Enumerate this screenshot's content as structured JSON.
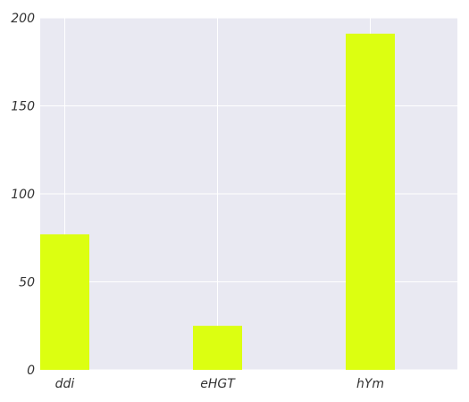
{
  "chart_data": {
    "type": "bar",
    "categories": [
      "ddi",
      "eHGT",
      "hYm"
    ],
    "values": [
      77,
      25,
      191
    ],
    "title": "",
    "xlabel": "",
    "ylabel": "",
    "ylim": [
      0,
      200
    ],
    "yticks": [
      0,
      50,
      100,
      150,
      200
    ],
    "grid": true,
    "legend": "none",
    "colors": {
      "bar": "#dcff11",
      "plot_background": "#e9e9f2",
      "grid": "#ffffff",
      "text": "#333333"
    }
  }
}
